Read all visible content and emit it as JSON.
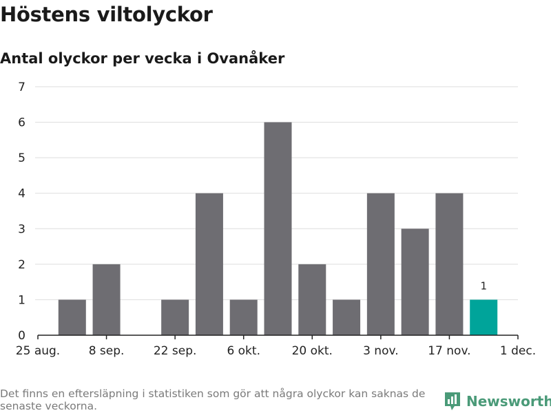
{
  "header": {
    "title": "Höstens viltolyckor",
    "subtitle": "Antal olyckor per vecka i Ovanåker"
  },
  "footer": {
    "note": "Det finns en eftersläpning i statistiken som gör att några olyckor kan saknas de senaste veckorna.",
    "brand": "Newsworthy"
  },
  "colors": {
    "bar": "#6e6d72",
    "highlight": "#00a49a",
    "grid": "#dddddd",
    "axis": "#222222",
    "brand": "#4a9a78"
  },
  "chart_data": {
    "type": "bar",
    "title": "Höstens viltolyckor",
    "subtitle": "Antal olyckor per vecka i Ovanåker",
    "xlabel": "",
    "ylabel": "",
    "ylim": [
      0,
      7
    ],
    "yticks": [
      0,
      1,
      2,
      3,
      4,
      5,
      6,
      7
    ],
    "grid": true,
    "week_slots": 14,
    "values": [
      1,
      2,
      0,
      1,
      4,
      1,
      6,
      2,
      1,
      4,
      3,
      4,
      1
    ],
    "highlight_index": 12,
    "data_labels": [
      {
        "index": 12,
        "text": "1"
      }
    ],
    "x_ticks": [
      {
        "slot": 0,
        "label": "25 aug."
      },
      {
        "slot": 2,
        "label": "8 sep."
      },
      {
        "slot": 4,
        "label": "22 sep."
      },
      {
        "slot": 6,
        "label": "6 okt."
      },
      {
        "slot": 8,
        "label": "20 okt."
      },
      {
        "slot": 10,
        "label": "3 nov."
      },
      {
        "slot": 12,
        "label": "17 nov."
      },
      {
        "slot": 14,
        "label": "1 dec."
      }
    ]
  }
}
